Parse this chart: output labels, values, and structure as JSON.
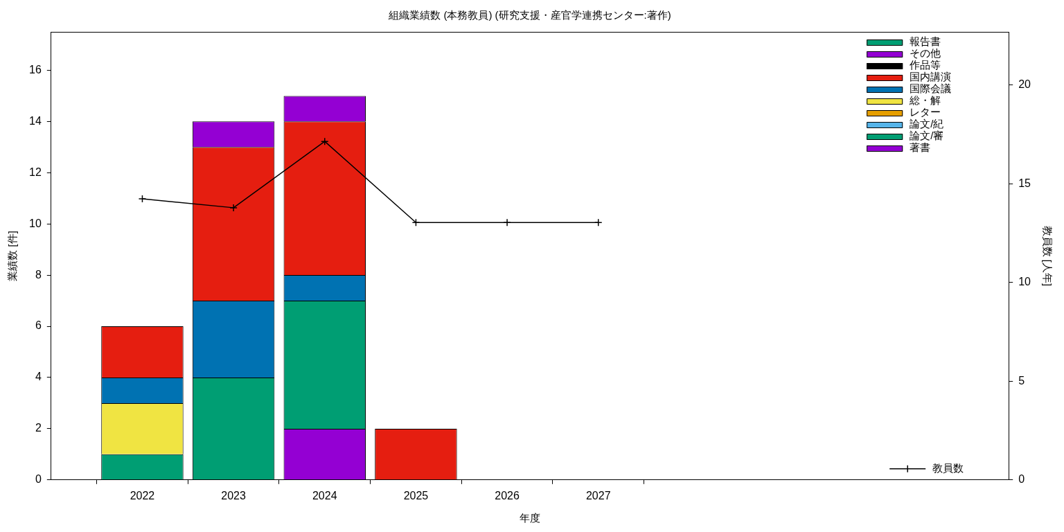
{
  "chart_data": {
    "type": "bar",
    "title": "組織業績数 (本務教員) (研究支援・産官学連携センター:著作)",
    "xlabel": "年度",
    "ylabel": "業績数 [件]",
    "y2label": "教員数 [人年]",
    "stacked": true,
    "legend": "top right",
    "grid": false,
    "xlim": [
      2021,
      2031.5
    ],
    "xticks": [
      2022,
      2023,
      2024,
      2025,
      2026,
      2027
    ],
    "ylim": [
      0,
      17.5
    ],
    "yticks": [
      0,
      2,
      4,
      6,
      8,
      10,
      12,
      14,
      16
    ],
    "y2lim": [
      0,
      22.7
    ],
    "y2ticks": [
      0,
      5,
      10,
      15,
      20
    ],
    "x": [
      2022,
      2023,
      2024,
      2025
    ],
    "series": [
      {
        "name": "著書",
        "color": "#9400d3",
        "values": [
          0,
          0,
          2,
          0
        ]
      },
      {
        "name": "論文/審",
        "color": "#009e73",
        "values": [
          1,
          4,
          5,
          0
        ]
      },
      {
        "name": "論文/紀",
        "color": "#56b4e9",
        "values": [
          0,
          0,
          0,
          0
        ]
      },
      {
        "name": "レター",
        "color": "#e69f00",
        "values": [
          0,
          0,
          0,
          0
        ]
      },
      {
        "name": "総・解",
        "color": "#f0e442",
        "values": [
          2,
          0,
          0,
          0
        ]
      },
      {
        "name": "国際会議",
        "color": "#0072b2",
        "values": [
          1,
          3,
          1,
          0
        ]
      },
      {
        "name": "国内講演",
        "color": "#e51e10",
        "values": [
          2,
          6,
          6,
          2
        ]
      },
      {
        "name": "作品等",
        "color": "#000000",
        "values": [
          0,
          0,
          0,
          0
        ]
      },
      {
        "name": "その他",
        "color": "#9400d3",
        "values": [
          0,
          1,
          1,
          0
        ]
      },
      {
        "name": "報告書",
        "color": "#009e73",
        "values": [
          0,
          0,
          0,
          0
        ]
      },
      {
        "name": "教員数",
        "type": "line",
        "axis": "y2",
        "marker": "cross",
        "line_style": "solid",
        "color": "#000000",
        "x": [
          2022,
          2023,
          2024,
          2025,
          2026,
          2027
        ],
        "values": [
          14.24,
          13.79,
          17.15,
          13.04,
          13.04,
          13.04
        ]
      }
    ]
  }
}
